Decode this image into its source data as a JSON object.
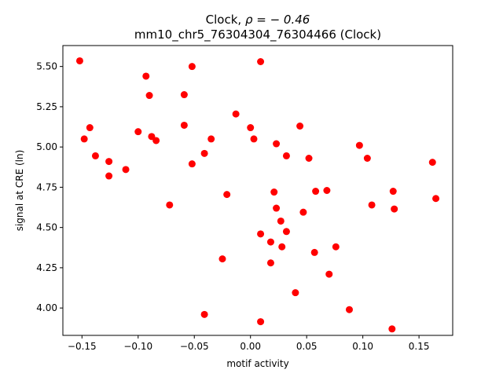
{
  "chart_data": {
    "type": "scatter",
    "title_line1_prefix": "Clock, ",
    "title_line1_math": "ρ = − 0.46",
    "title_line2": "mm10_chr5_76304304_76304466 (Clock)",
    "xlabel": "motif activity",
    "ylabel": "signal at CRE (ln)",
    "xlim": [
      -0.167,
      0.18
    ],
    "ylim": [
      3.83,
      5.63
    ],
    "xticks": [
      -0.15,
      -0.1,
      -0.05,
      0.0,
      0.05,
      0.1,
      0.15
    ],
    "xtick_labels": [
      "−0.15",
      "−0.10",
      "−0.05",
      "0.00",
      "0.05",
      "0.10",
      "0.15"
    ],
    "yticks": [
      4.0,
      4.25,
      4.5,
      4.75,
      5.0,
      5.25,
      5.5
    ],
    "ytick_labels": [
      "4.00",
      "4.25",
      "4.50",
      "4.75",
      "5.00",
      "5.25",
      "5.50"
    ],
    "grid": false,
    "marker_color": "#ff0000",
    "points": [
      {
        "x": -0.152,
        "y": 5.535
      },
      {
        "x": -0.148,
        "y": 5.05
      },
      {
        "x": -0.143,
        "y": 5.12
      },
      {
        "x": -0.138,
        "y": 4.945
      },
      {
        "x": -0.126,
        "y": 4.91
      },
      {
        "x": -0.126,
        "y": 4.82
      },
      {
        "x": -0.111,
        "y": 4.86
      },
      {
        "x": -0.1,
        "y": 5.095
      },
      {
        "x": -0.093,
        "y": 5.44
      },
      {
        "x": -0.09,
        "y": 5.32
      },
      {
        "x": -0.088,
        "y": 5.065
      },
      {
        "x": -0.084,
        "y": 5.04
      },
      {
        "x": -0.072,
        "y": 4.64
      },
      {
        "x": -0.059,
        "y": 5.325
      },
      {
        "x": -0.059,
        "y": 5.135
      },
      {
        "x": -0.052,
        "y": 5.5
      },
      {
        "x": -0.052,
        "y": 4.895
      },
      {
        "x": -0.041,
        "y": 4.96
      },
      {
        "x": -0.041,
        "y": 3.96
      },
      {
        "x": -0.035,
        "y": 5.05
      },
      {
        "x": -0.025,
        "y": 4.305
      },
      {
        "x": -0.021,
        "y": 4.705
      },
      {
        "x": -0.013,
        "y": 5.205
      },
      {
        "x": 0.0,
        "y": 5.12
      },
      {
        "x": 0.003,
        "y": 5.05
      },
      {
        "x": 0.009,
        "y": 5.53
      },
      {
        "x": 0.009,
        "y": 4.46
      },
      {
        "x": 0.009,
        "y": 3.915
      },
      {
        "x": 0.018,
        "y": 4.41
      },
      {
        "x": 0.018,
        "y": 4.28
      },
      {
        "x": 0.021,
        "y": 4.72
      },
      {
        "x": 0.023,
        "y": 5.02
      },
      {
        "x": 0.023,
        "y": 4.62
      },
      {
        "x": 0.027,
        "y": 4.54
      },
      {
        "x": 0.028,
        "y": 4.38
      },
      {
        "x": 0.032,
        "y": 4.945
      },
      {
        "x": 0.032,
        "y": 4.475
      },
      {
        "x": 0.04,
        "y": 4.095
      },
      {
        "x": 0.044,
        "y": 5.13
      },
      {
        "x": 0.047,
        "y": 4.595
      },
      {
        "x": 0.052,
        "y": 4.93
      },
      {
        "x": 0.057,
        "y": 4.345
      },
      {
        "x": 0.058,
        "y": 4.725
      },
      {
        "x": 0.068,
        "y": 4.73
      },
      {
        "x": 0.07,
        "y": 4.21
      },
      {
        "x": 0.076,
        "y": 4.38
      },
      {
        "x": 0.088,
        "y": 3.99
      },
      {
        "x": 0.097,
        "y": 5.01
      },
      {
        "x": 0.104,
        "y": 4.93
      },
      {
        "x": 0.108,
        "y": 4.64
      },
      {
        "x": 0.126,
        "y": 3.87
      },
      {
        "x": 0.127,
        "y": 4.725
      },
      {
        "x": 0.128,
        "y": 4.615
      },
      {
        "x": 0.162,
        "y": 4.905
      },
      {
        "x": 0.165,
        "y": 4.68
      }
    ]
  }
}
